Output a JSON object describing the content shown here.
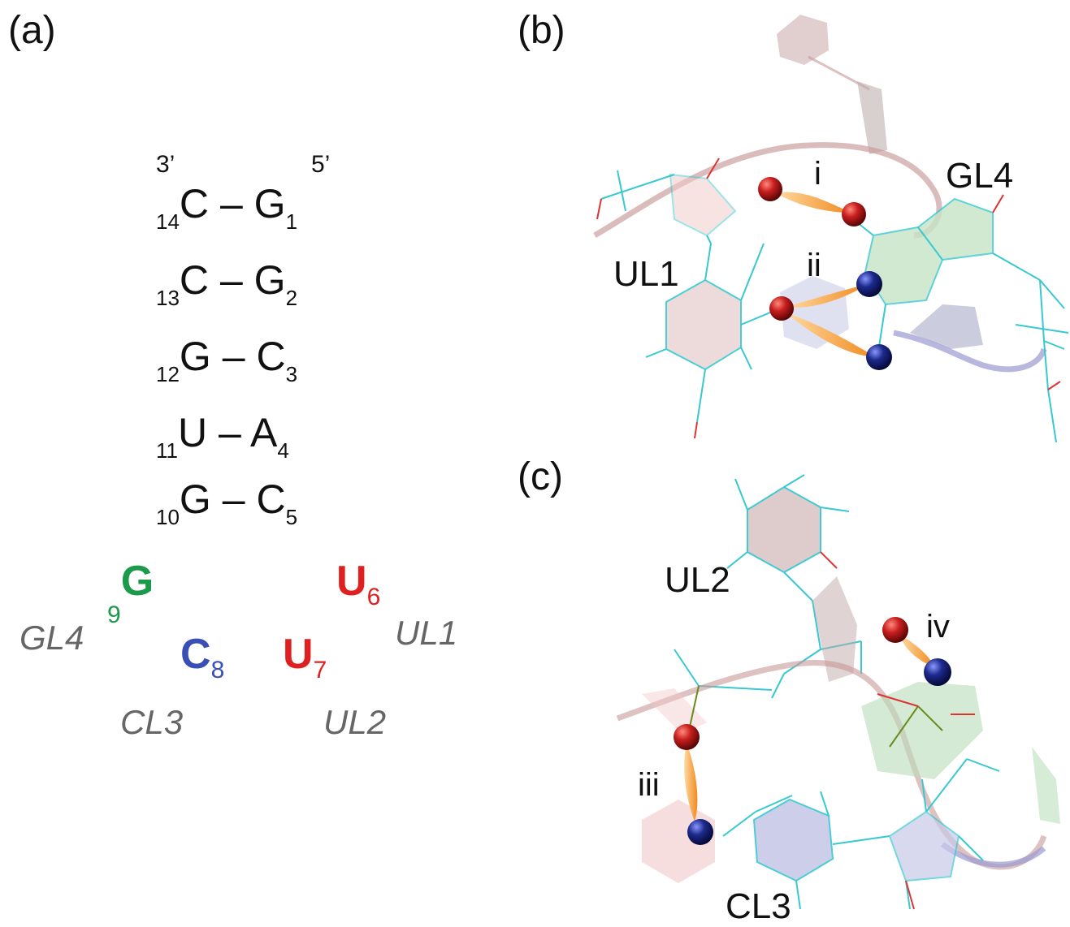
{
  "panels": {
    "a_label": "(a)",
    "b_label": "(b)",
    "c_label": "(c)"
  },
  "stem": {
    "prime3": "3’",
    "prime5": "5’",
    "dash": "–",
    "pairs": [
      {
        "left_num": "14",
        "left_base": "C",
        "right_base": "G",
        "right_num": "1"
      },
      {
        "left_num": "13",
        "left_base": "C",
        "right_base": "G",
        "right_num": "2"
      },
      {
        "left_num": "12",
        "left_base": "G",
        "right_base": "C",
        "right_num": "3"
      },
      {
        "left_num": "11",
        "left_base": "U",
        "right_base": "A",
        "right_num": "4"
      },
      {
        "left_num": "10",
        "left_base": "G",
        "right_base": "C",
        "right_num": "5"
      }
    ]
  },
  "loop": {
    "g9": {
      "num": "9",
      "base": "G",
      "name": "GL4",
      "color": "#1a9a4a"
    },
    "c8": {
      "num": "8",
      "base": "C",
      "name": "CL3",
      "color": "#3a4fb5"
    },
    "u7": {
      "num": "7",
      "base": "U",
      "name": "UL2",
      "color": "#e02020"
    },
    "u6": {
      "num": "6",
      "base": "U",
      "name": "UL1",
      "color": "#e02020"
    }
  },
  "panel_b": {
    "labels": {
      "ul1": "UL1",
      "gl4": "GL4",
      "i": "i",
      "ii": "ii"
    }
  },
  "panel_c": {
    "labels": {
      "ul2": "UL2",
      "cl3": "CL3",
      "iii": "iii",
      "iv": "iv"
    }
  },
  "colors": {
    "oxygen": "#c81e1e",
    "nitrogen": "#1c2a8c",
    "bond": "#38c8d0",
    "hbond": "#f5a040",
    "ribbon_pink": "#c89898",
    "ribbon_blue": "#9a9ad0"
  }
}
